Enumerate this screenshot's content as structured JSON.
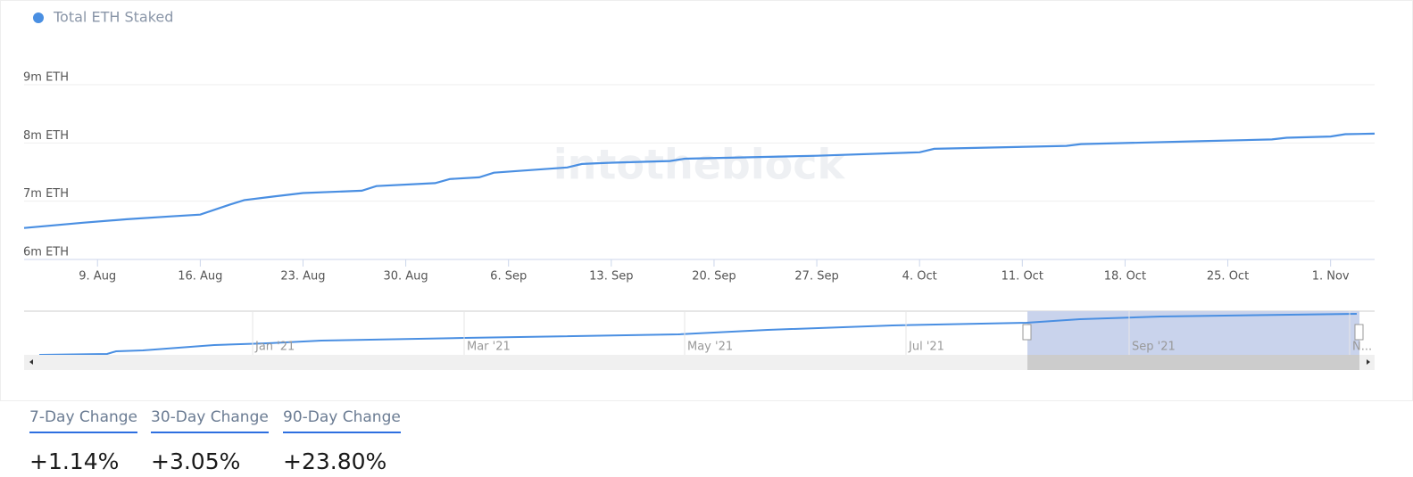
{
  "chart_data": {
    "type": "line",
    "watermark": "intotheblock",
    "series": [
      {
        "name": "Total ETH Staked",
        "color": "#4a8fe2",
        "x": [
          "4. Aug",
          "8. Aug",
          "11. Aug",
          "14. Aug",
          "16. Aug",
          "18. Aug",
          "19. Aug",
          "21. Aug",
          "23. Aug",
          "27. Aug",
          "28. Aug",
          "1. Sep",
          "2. Sep",
          "4. Sep",
          "5. Sep",
          "10. Sep",
          "11. Sep",
          "13. Sep",
          "17. Sep",
          "18. Sep",
          "27. Sep",
          "4. Oct",
          "5. Oct",
          "14. Oct",
          "15. Oct",
          "23. Oct",
          "28. Oct",
          "29. Oct",
          "1. Nov",
          "2. Nov",
          "4. Nov"
        ],
        "values": [
          6540000,
          6630000,
          6690000,
          6740000,
          6770000,
          6940000,
          7020000,
          7080000,
          7140000,
          7180000,
          7260000,
          7310000,
          7380000,
          7410000,
          7490000,
          7580000,
          7640000,
          7660000,
          7690000,
          7730000,
          7780000,
          7840000,
          7900000,
          7950000,
          7980000,
          8030000,
          8060000,
          8090000,
          8110000,
          8150000,
          8160000
        ]
      }
    ],
    "xlim": [
      "4. Aug",
      "4. Nov"
    ],
    "xticks": [
      "9. Aug",
      "16. Aug",
      "23. Aug",
      "30. Aug",
      "6. Sep",
      "13. Sep",
      "20. Sep",
      "27. Sep",
      "4. Oct",
      "11. Oct",
      "18. Oct",
      "25. Oct",
      "1. Nov"
    ],
    "ylim": [
      6000000,
      9000000
    ],
    "yticks": [
      {
        "value": 6000000,
        "label": "6m ETH"
      },
      {
        "value": 7000000,
        "label": "7m ETH"
      },
      {
        "value": 8000000,
        "label": "8m ETH"
      },
      {
        "value": 9000000,
        "label": "9m ETH"
      }
    ],
    "grid": true
  },
  "navigator": {
    "labels": [
      "Jan '21",
      "Mar '21",
      "May '21",
      "Jul '21",
      "Sep '21",
      "N..."
    ]
  },
  "stats": [
    {
      "label": "7-Day Change",
      "value": "+1.14%"
    },
    {
      "label": "30-Day Change",
      "value": "+3.05%"
    },
    {
      "label": "90-Day Change",
      "value": "+23.80%"
    }
  ]
}
